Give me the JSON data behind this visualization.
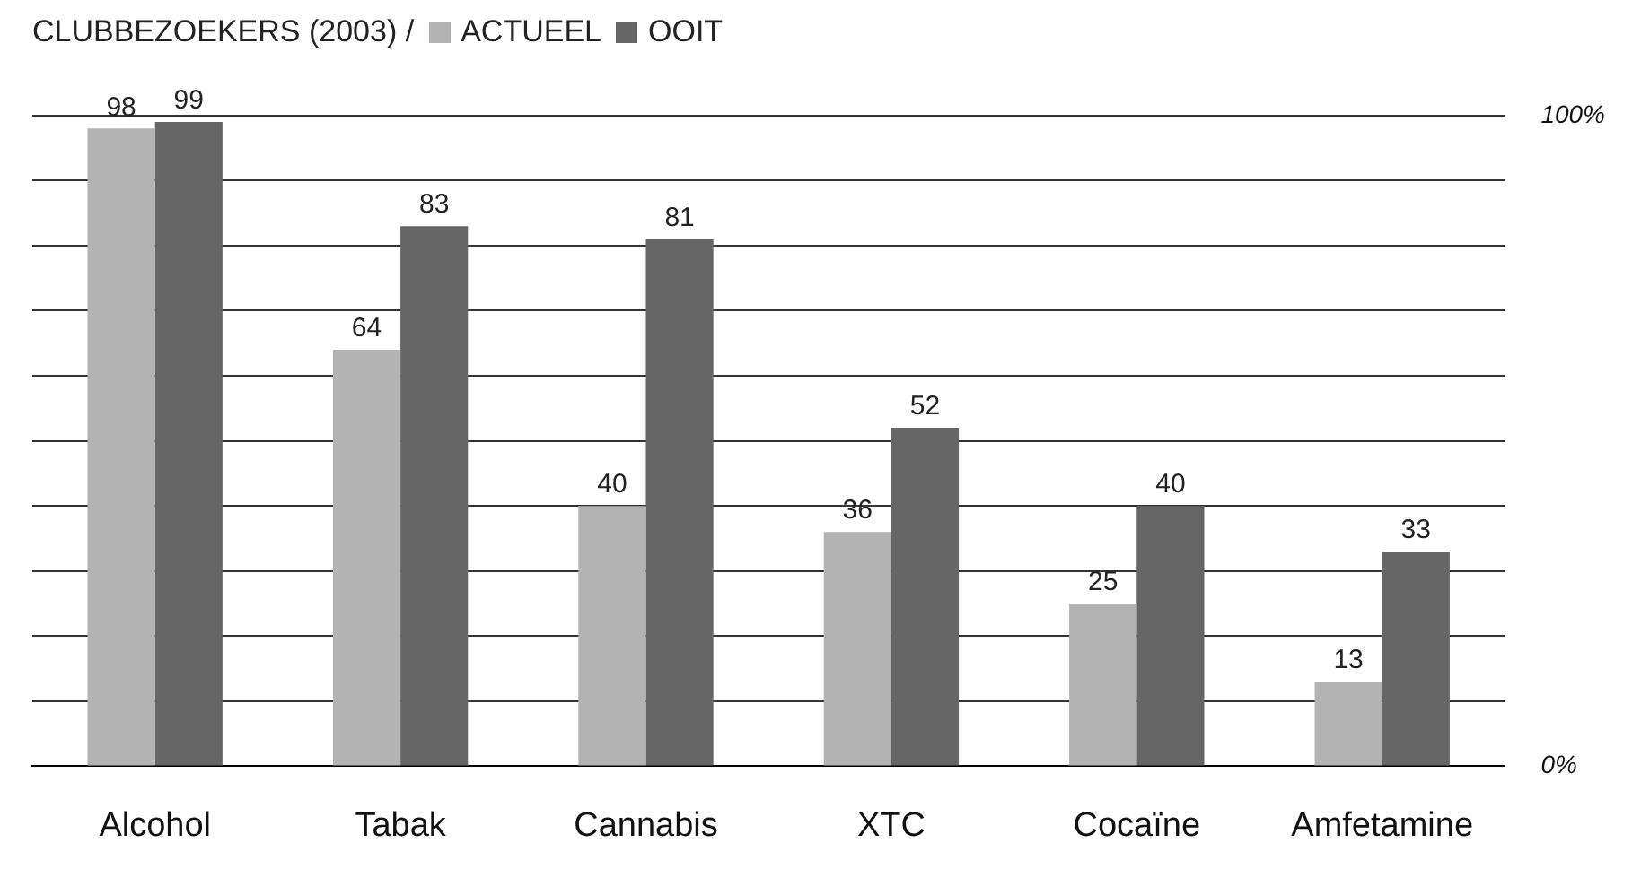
{
  "chart_data": {
    "type": "bar",
    "title": "CLUBBEZOEKERS (2003) /",
    "categories": [
      "Alcohol",
      "Tabak",
      "Cannabis",
      "XTC",
      "Cocaïne",
      "Amfetamine"
    ],
    "series": [
      {
        "name": "ACTUEEL",
        "color": "#b3b3b3",
        "values": [
          98,
          64,
          40,
          36,
          25,
          13
        ]
      },
      {
        "name": "OOIT",
        "color": "#666666",
        "values": [
          99,
          83,
          81,
          52,
          40,
          33
        ]
      }
    ],
    "ylim": [
      0,
      100
    ],
    "yticks": [
      {
        "value": 0,
        "label": "0%"
      },
      {
        "value": 10,
        "label": null
      },
      {
        "value": 20,
        "label": null
      },
      {
        "value": 30,
        "label": null
      },
      {
        "value": 40,
        "label": null
      },
      {
        "value": 50,
        "label": null
      },
      {
        "value": 60,
        "label": null
      },
      {
        "value": 70,
        "label": null
      },
      {
        "value": 80,
        "label": null
      },
      {
        "value": 90,
        "label": null
      },
      {
        "value": 100,
        "label": "100%"
      }
    ],
    "grid": "y",
    "legend": "top left",
    "data_labels": true
  }
}
